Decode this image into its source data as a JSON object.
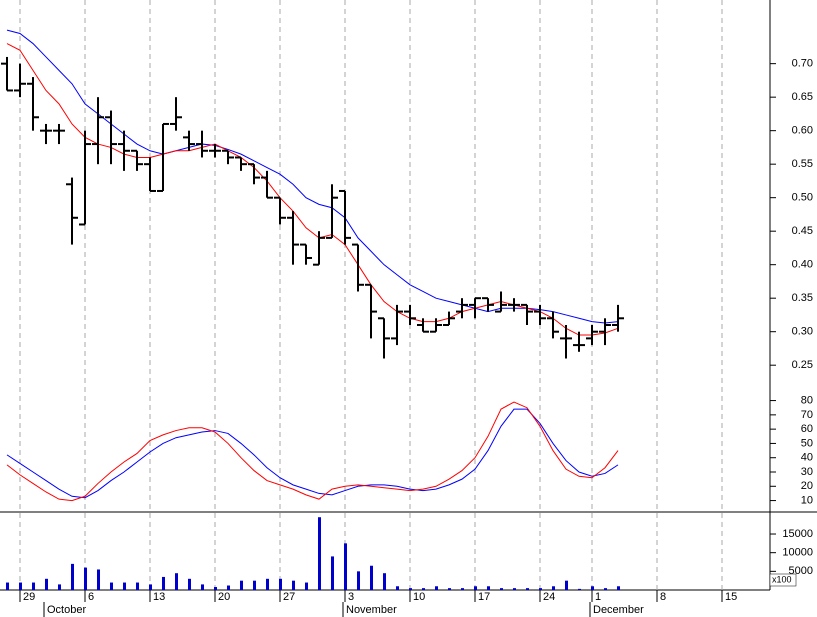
{
  "chart_data": [
    {
      "type": "ohlc",
      "categories": [
        null,
        "29",
        null,
        null,
        null,
        null,
        "6",
        null,
        null,
        null,
        null,
        "13",
        null,
        null,
        null,
        null,
        "20",
        null,
        null,
        null,
        null,
        "27",
        null,
        null,
        null,
        null,
        "3",
        null,
        null,
        null,
        null,
        "10",
        null,
        null,
        null,
        null,
        "17",
        null,
        null,
        null,
        null,
        "24",
        null,
        null,
        null,
        "1",
        null,
        null,
        null,
        null,
        "8",
        null,
        null,
        null,
        null,
        "15",
        null,
        null,
        null
      ],
      "months": [
        {
          "label": "October",
          "index": 3
        },
        {
          "label": "November",
          "index": 26
        },
        {
          "label": "December",
          "index": 45
        }
      ],
      "open": [
        0.7,
        0.66,
        0.67,
        0.6,
        0.6,
        0.52,
        0.46,
        0.58,
        0.62,
        0.58,
        0.57,
        0.55,
        0.51,
        0.61,
        0.59,
        0.58,
        0.57,
        0.57,
        0.56,
        0.55,
        0.53,
        0.5,
        0.47,
        0.43,
        0.4,
        0.44,
        0.51,
        0.43,
        0.37,
        0.32,
        0.29,
        0.33,
        0.31,
        0.3,
        0.31,
        0.33,
        0.34,
        0.35,
        0.33,
        0.34,
        0.34,
        0.33,
        0.32,
        0.29,
        0.28,
        0.29,
        0.3,
        0.31,
        null,
        null,
        null,
        null,
        null,
        null,
        null,
        null,
        null,
        null,
        null
      ],
      "high": [
        0.71,
        0.7,
        0.68,
        0.61,
        0.61,
        0.53,
        0.6,
        0.65,
        0.63,
        0.6,
        0.57,
        0.56,
        0.61,
        0.65,
        0.6,
        0.6,
        0.58,
        0.57,
        0.56,
        0.55,
        0.54,
        0.5,
        0.48,
        0.43,
        0.45,
        0.52,
        0.51,
        0.43,
        0.37,
        0.32,
        0.34,
        0.34,
        0.32,
        0.32,
        0.33,
        0.35,
        0.35,
        0.35,
        0.36,
        0.35,
        0.34,
        0.34,
        0.33,
        0.31,
        0.3,
        0.31,
        0.32,
        0.34,
        null,
        null,
        null,
        null,
        null,
        null,
        null,
        null,
        null,
        null,
        null
      ],
      "low": [
        0.66,
        0.65,
        0.6,
        0.58,
        0.58,
        0.43,
        0.46,
        0.55,
        0.55,
        0.54,
        0.54,
        0.51,
        0.51,
        0.6,
        0.57,
        0.56,
        0.56,
        0.55,
        0.54,
        0.52,
        0.5,
        0.46,
        0.4,
        0.4,
        0.4,
        0.44,
        0.43,
        0.36,
        0.29,
        0.26,
        0.28,
        0.31,
        0.3,
        0.3,
        0.31,
        0.32,
        0.32,
        0.33,
        0.33,
        0.33,
        0.31,
        0.31,
        0.29,
        0.26,
        0.27,
        0.28,
        0.28,
        0.3,
        null,
        null,
        null,
        null,
        null,
        null,
        null,
        null,
        null,
        null,
        null
      ],
      "close": [
        0.66,
        0.67,
        0.62,
        0.6,
        0.6,
        0.47,
        0.58,
        0.62,
        0.58,
        0.57,
        0.55,
        0.51,
        0.61,
        0.62,
        0.58,
        0.57,
        0.57,
        0.56,
        0.55,
        0.53,
        0.5,
        0.47,
        0.43,
        0.41,
        0.44,
        0.5,
        0.44,
        0.37,
        0.33,
        0.29,
        0.33,
        0.32,
        0.3,
        0.31,
        0.32,
        0.34,
        0.35,
        0.34,
        0.34,
        0.34,
        0.33,
        0.32,
        0.3,
        0.29,
        0.28,
        0.3,
        0.31,
        0.32,
        null,
        null,
        null,
        null,
        null,
        null,
        null,
        null,
        null,
        null,
        null
      ],
      "color": "#000000",
      "series": [
        {
          "color": "#0000ff",
          "values": [
            0.75,
            0.745,
            0.73,
            0.71,
            0.69,
            0.67,
            0.64,
            0.625,
            0.61,
            0.595,
            0.58,
            0.57,
            0.565,
            0.57,
            0.575,
            0.58,
            0.578,
            0.572,
            0.565,
            0.555,
            0.545,
            0.535,
            0.52,
            0.5,
            0.49,
            0.485,
            0.47,
            0.44,
            0.42,
            0.4,
            0.385,
            0.37,
            0.36,
            0.35,
            0.345,
            0.34,
            0.335,
            0.33,
            0.335,
            0.335,
            0.335,
            0.333,
            0.33,
            0.325,
            0.32,
            0.315,
            0.313,
            0.315,
            null,
            null,
            null,
            null,
            null,
            null,
            null,
            null,
            null,
            null,
            null
          ]
        },
        {
          "color": "#ff0000",
          "values": [
            0.73,
            0.72,
            0.69,
            0.66,
            0.64,
            0.61,
            0.59,
            0.58,
            0.575,
            0.565,
            0.56,
            0.56,
            0.565,
            0.57,
            0.57,
            0.575,
            0.58,
            0.57,
            0.56,
            0.545,
            0.525,
            0.5,
            0.48,
            0.455,
            0.44,
            0.445,
            0.43,
            0.4,
            0.37,
            0.345,
            0.33,
            0.32,
            0.315,
            0.315,
            0.32,
            0.33,
            0.335,
            0.34,
            0.345,
            0.34,
            0.335,
            0.33,
            0.32,
            0.305,
            0.295,
            0.295,
            0.298,
            0.305,
            null,
            null,
            null,
            null,
            null,
            null,
            null,
            null,
            null,
            null,
            null
          ]
        }
      ],
      "ylim": [
        0.21,
        0.795
      ],
      "yticks": [
        {
          "value": 0.7,
          "label": "0.70"
        },
        {
          "value": 0.65,
          "label": "0.65"
        },
        {
          "value": 0.6,
          "label": "0.60"
        },
        {
          "value": 0.55,
          "label": "0.55"
        },
        {
          "value": 0.5,
          "label": "0.50"
        },
        {
          "value": 0.45,
          "label": "0.45"
        },
        {
          "value": 0.4,
          "label": "0.40"
        },
        {
          "value": 0.35,
          "label": "0.35"
        },
        {
          "value": 0.3,
          "label": "0.30"
        },
        {
          "value": 0.25,
          "label": "0.25"
        }
      ],
      "grid": true
    },
    {
      "type": "line",
      "series": [
        {
          "color": "#0000ff",
          "values": [
            42,
            36,
            30,
            24,
            18,
            13,
            12,
            17,
            24,
            30,
            37,
            44,
            50,
            54,
            56,
            58,
            59,
            57,
            50,
            42,
            33,
            26,
            21,
            18,
            15,
            14,
            17,
            20,
            21,
            21,
            20,
            18,
            17,
            18,
            21,
            25,
            32,
            45,
            62,
            74,
            74,
            64,
            50,
            38,
            30,
            27,
            29,
            35,
            null,
            null,
            null,
            null,
            null,
            null,
            null,
            null,
            null,
            null,
            null
          ]
        },
        {
          "color": "#ff0000",
          "values": [
            35,
            28,
            22,
            16,
            11,
            10,
            13,
            22,
            30,
            37,
            43,
            52,
            56,
            59,
            61,
            61,
            58,
            50,
            40,
            31,
            24,
            21,
            18,
            14,
            11,
            18,
            20,
            21,
            20,
            19,
            18,
            17,
            18,
            20,
            25,
            31,
            40,
            55,
            74,
            79,
            75,
            62,
            45,
            32,
            27,
            26,
            33,
            45,
            null,
            null,
            null,
            null,
            null,
            null,
            null,
            null,
            null,
            null,
            null
          ]
        }
      ],
      "ylim": [
        2,
        86
      ],
      "yticks": [
        80,
        70,
        60,
        50,
        40,
        30,
        20,
        10
      ]
    },
    {
      "type": "bar",
      "color": "#0000cc",
      "unit_label": "x100",
      "values": [
        2000,
        2000,
        2000,
        3000,
        1500,
        7000,
        6000,
        5500,
        2000,
        2000,
        2000,
        1500,
        3500,
        4500,
        3000,
        1500,
        800,
        1200,
        2500,
        2500,
        3000,
        3000,
        2500,
        2000,
        19500,
        9000,
        12500,
        5000,
        6500,
        4500,
        1000,
        500,
        500,
        1000,
        500,
        500,
        1000,
        1000,
        500,
        500,
        500,
        500,
        1000,
        2500,
        300,
        1000,
        500,
        1000,
        null,
        null,
        null,
        null,
        null,
        null,
        null,
        null,
        null,
        null,
        null
      ],
      "ylim": [
        0,
        20900
      ],
      "yticks": [
        15000,
        10000,
        5000
      ]
    }
  ]
}
